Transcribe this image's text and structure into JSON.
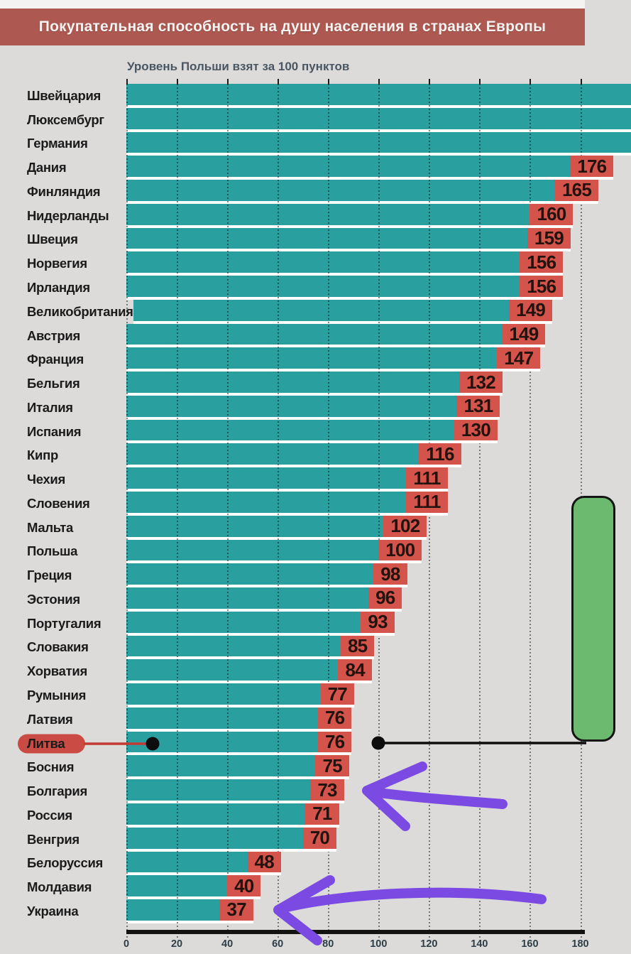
{
  "banner": {
    "title": "Покупательная способность на душу населения в странах Европы",
    "bg_color": "#ad5952"
  },
  "chart_data": {
    "type": "bar",
    "orientation": "horizontal",
    "title": "Покупательная способность на душу населения в странах Европы",
    "subtitle": "Уровень Польши взят за 100 пунктов",
    "xlim": [
      0,
      182
    ],
    "x_ticks": [
      0,
      20,
      40,
      60,
      80,
      100,
      120,
      140,
      160,
      180
    ],
    "grid": true,
    "legend": "none",
    "bar_color": "#2a9fa0",
    "value_box_color": "#d4544b",
    "rows": [
      {
        "country": "Швейцария",
        "value": null,
        "bar_cut_at_right_edge": true,
        "render_units": 200
      },
      {
        "country": "Люксембург",
        "value": null,
        "bar_cut_at_right_edge": true,
        "render_units": 200
      },
      {
        "country": "Германия",
        "value": null,
        "bar_cut_at_right_edge": true,
        "render_units": 200
      },
      {
        "country": "Дания",
        "value": 176,
        "label_partially_visible": true
      },
      {
        "country": "Финляндия",
        "value": 165,
        "render_units": 170,
        "label_partially_visible": true
      },
      {
        "country": "Нидерланды",
        "value": 160
      },
      {
        "country": "Швеция",
        "value": 159
      },
      {
        "country": "Норвегия",
        "value": 156
      },
      {
        "country": "Ирландия",
        "value": 156
      },
      {
        "country": "Великобритания",
        "value": 149
      },
      {
        "country": "Австрия",
        "value": 149
      },
      {
        "country": "Франция",
        "value": 147
      },
      {
        "country": "Бельгия",
        "value": 132
      },
      {
        "country": "Италия",
        "value": 131
      },
      {
        "country": "Испания",
        "value": 130
      },
      {
        "country": "Кипр",
        "value": 116
      },
      {
        "country": "Чехия",
        "value": 111
      },
      {
        "country": "Словения",
        "value": 111
      },
      {
        "country": "Мальта",
        "value": 102
      },
      {
        "country": "Польша",
        "value": 100
      },
      {
        "country": "Греция",
        "value": 98
      },
      {
        "country": "Эстония",
        "value": 96
      },
      {
        "country": "Португалия",
        "value": 93
      },
      {
        "country": "Словакия",
        "value": 85
      },
      {
        "country": "Хорватия",
        "value": 84
      },
      {
        "country": "Румыния",
        "value": 77
      },
      {
        "country": "Латвия",
        "value": 76
      },
      {
        "country": "Литва",
        "value": 76,
        "highlighted": true
      },
      {
        "country": "Босния",
        "value": 75
      },
      {
        "country": "Болгария",
        "value": 73
      },
      {
        "country": "Россия",
        "value": 71
      },
      {
        "country": "Венгрия",
        "value": 70
      },
      {
        "country": "Белоруссия",
        "value": 48
      },
      {
        "country": "Молдавия",
        "value": 40
      },
      {
        "country": "Украина",
        "value": 37
      }
    ],
    "highlighted_row": "Литва"
  },
  "annotations": {
    "lithuania_callout": {
      "label": "Литва",
      "pill_color": "#c94b43",
      "connector_color": "#c23a32",
      "dot_color": "#0d0d0d",
      "reference_line_color": "#0d0d0d"
    },
    "green_panel": {
      "fill": "#6cba70",
      "border": "#151515",
      "cut_at_right_edge": true
    },
    "purple_arrows": {
      "color": "#7b4ae2",
      "count": 2,
      "targets": [
        "Болгария (73)",
        "Украина (37)"
      ]
    }
  }
}
